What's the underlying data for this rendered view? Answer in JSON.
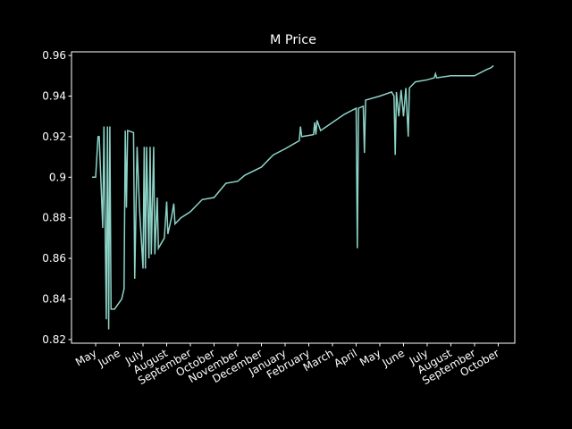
{
  "chart_data": {
    "type": "line",
    "title": "M Price",
    "x": [
      -0.15,
      0,
      0.1,
      0.15,
      0.3,
      0.35,
      0.45,
      0.5,
      0.55,
      0.6,
      0.65,
      0.8,
      1.1,
      1.2,
      1.25,
      1.3,
      1.35,
      1.6,
      1.65,
      1.75,
      1.85,
      2,
      2.05,
      2.1,
      2.15,
      2.25,
      2.3,
      2.35,
      2.45,
      2.5,
      2.6,
      2.65,
      2.8,
      2.9,
      3,
      3.05,
      3.2,
      3.3,
      3.35,
      3.6,
      4,
      4.5,
      5,
      5.5,
      6,
      6.3,
      7,
      7.5,
      8,
      8.6,
      8.65,
      8.7,
      9.2,
      9.25,
      9.3,
      9.35,
      9.5,
      10,
      10.5,
      11,
      11.05,
      11.1,
      11.3,
      11.35,
      11.4,
      12,
      12.5,
      12.6,
      12.65,
      12.7,
      12.8,
      12.9,
      13,
      13.1,
      13.2,
      13.25,
      13.5,
      14,
      14.3,
      14.35,
      14.4,
      15,
      16,
      16.5,
      16.7,
      16.8
    ],
    "series": [
      {
        "color": "#8dd3c7",
        "values": [
          0.9,
          0.9,
          0.92,
          0.92,
          0.875,
          0.925,
          0.83,
          0.925,
          0.825,
          0.925,
          0.835,
          0.835,
          0.84,
          0.845,
          0.923,
          0.885,
          0.923,
          0.922,
          0.85,
          0.915,
          0.885,
          0.855,
          0.915,
          0.855,
          0.915,
          0.86,
          0.915,
          0.862,
          0.915,
          0.862,
          0.89,
          0.865,
          0.868,
          0.87,
          0.888,
          0.872,
          0.88,
          0.887,
          0.877,
          0.88,
          0.883,
          0.889,
          0.89,
          0.897,
          0.898,
          0.901,
          0.905,
          0.911,
          0.914,
          0.918,
          0.925,
          0.92,
          0.921,
          0.927,
          0.921,
          0.928,
          0.923,
          0.927,
          0.931,
          0.934,
          0.865,
          0.934,
          0.935,
          0.912,
          0.938,
          0.94,
          0.942,
          0.94,
          0.911,
          0.942,
          0.93,
          0.943,
          0.93,
          0.944,
          0.92,
          0.944,
          0.947,
          0.948,
          0.949,
          0.951,
          0.949,
          0.95,
          0.95,
          0.953,
          0.954,
          0.955
        ]
      }
    ],
    "xlim": [
      -1.02,
      17.7
    ],
    "xticks": [
      {
        "value": 0,
        "label": "May"
      },
      {
        "value": 1,
        "label": "June"
      },
      {
        "value": 2,
        "label": "July"
      },
      {
        "value": 3,
        "label": "August"
      },
      {
        "value": 4,
        "label": "September"
      },
      {
        "value": 5,
        "label": "October"
      },
      {
        "value": 6,
        "label": "November"
      },
      {
        "value": 7,
        "label": "December"
      },
      {
        "value": 8,
        "label": "January"
      },
      {
        "value": 9,
        "label": "February"
      },
      {
        "value": 10,
        "label": "March"
      },
      {
        "value": 11,
        "label": "April"
      },
      {
        "value": 12,
        "label": "May"
      },
      {
        "value": 13,
        "label": "June"
      },
      {
        "value": 14,
        "label": "July"
      },
      {
        "value": 15,
        "label": "August"
      },
      {
        "value": 16,
        "label": "September"
      },
      {
        "value": 17,
        "label": "October"
      }
    ],
    "ylim": [
      0.8182,
      0.9618
    ],
    "yticks": [
      0.82,
      0.84,
      0.86,
      0.88,
      0.9,
      0.92,
      0.94,
      0.96
    ]
  }
}
